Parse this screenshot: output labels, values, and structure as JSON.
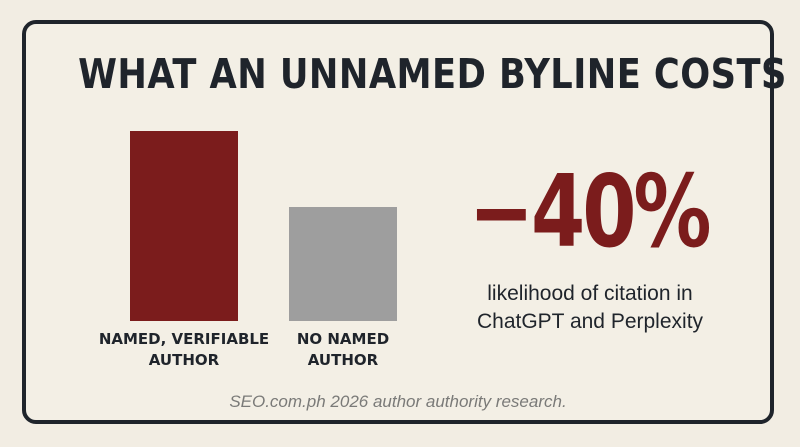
{
  "header": {
    "title": "WHAT AN UNNAMED BYLINE COSTS"
  },
  "chart_data": {
    "type": "bar",
    "title": "WHAT AN UNNAMED BYLINE COSTS",
    "categories": [
      [
        "NAMED, VERIFIABLE",
        "AUTHOR"
      ],
      [
        "NO NAMED",
        "AUTHOR"
      ]
    ],
    "values": [
      100,
      60
    ],
    "colors": [
      "#7b1c1c",
      "#9e9e9e"
    ],
    "ylim": [
      0,
      100
    ],
    "grid": false,
    "legend": "none"
  },
  "stat": {
    "value": "−40%",
    "description_line1": "likelihood of citation in",
    "description_line2": "ChatGPT and Perplexity"
  },
  "footer": {
    "source": "SEO.com.ph 2026 author authority research."
  }
}
